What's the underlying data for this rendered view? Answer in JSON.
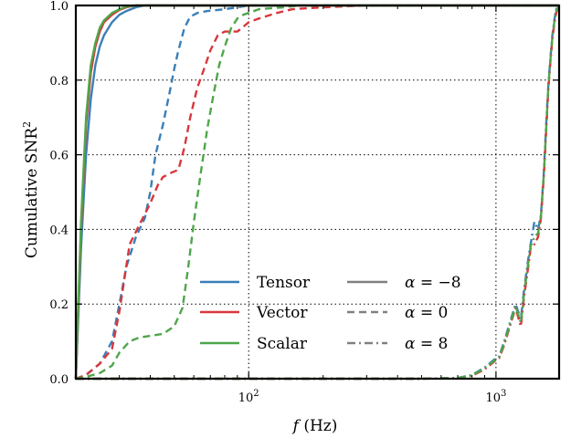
{
  "chart_data": {
    "type": "line",
    "title": "",
    "xlabel_var": "f",
    "xlabel_unit": "(Hz)",
    "ylabel_main": "Cumulative SNR",
    "ylabel_sup": "2",
    "x_scale": "log",
    "xlim": [
      20,
      1800
    ],
    "ylim": [
      0,
      1.0
    ],
    "x_ticks": [
      {
        "value": 100,
        "base": "10",
        "exp": "2"
      },
      {
        "value": 1000,
        "base": "10",
        "exp": "3"
      }
    ],
    "y_ticks": [
      {
        "value": 0.0,
        "label": "0.0"
      },
      {
        "value": 0.2,
        "label": "0.2"
      },
      {
        "value": 0.4,
        "label": "0.4"
      },
      {
        "value": 0.6,
        "label": "0.6"
      },
      {
        "value": 0.8,
        "label": "0.8"
      },
      {
        "value": 1.0,
        "label": "1.0"
      }
    ],
    "grid": true,
    "legend_placement": "lower-center",
    "colors": {
      "Tensor": "#3a7fb8",
      "Vector": "#d8373c",
      "Scalar": "#4fa64a",
      "gray": "#808080"
    },
    "legend": {
      "polarizations": [
        "Tensor",
        "Vector",
        "Scalar"
      ],
      "alphas": [
        {
          "style": "solid",
          "prefix": "α = ",
          "value": "−8"
        },
        {
          "style": "dashed",
          "prefix": "α = ",
          "value": "0"
        },
        {
          "style": "dashdot",
          "prefix": "α = ",
          "value": "8"
        }
      ]
    },
    "series": [
      {
        "polarization": "Tensor",
        "alpha": -8,
        "style": "solid",
        "x": [
          20,
          21,
          22,
          23,
          24,
          25,
          26,
          28,
          30,
          32,
          35,
          38,
          45,
          60,
          80,
          200,
          1800
        ],
        "y": [
          0,
          0.35,
          0.6,
          0.75,
          0.84,
          0.89,
          0.92,
          0.955,
          0.975,
          0.985,
          0.995,
          1.0,
          1.0,
          1.0,
          1.0,
          1.0,
          1.0
        ]
      },
      {
        "polarization": "Vector",
        "alpha": -8,
        "style": "solid",
        "x": [
          20,
          21,
          22,
          23,
          24,
          25,
          26,
          28,
          30,
          32,
          35,
          38,
          45,
          60,
          80,
          200,
          1800
        ],
        "y": [
          0,
          0.4,
          0.68,
          0.82,
          0.89,
          0.93,
          0.955,
          0.975,
          0.988,
          0.995,
          1.0,
          1.0,
          1.0,
          1.0,
          1.0,
          1.0,
          1.0
        ]
      },
      {
        "polarization": "Scalar",
        "alpha": -8,
        "style": "solid",
        "x": [
          20,
          21,
          22,
          23,
          24,
          25,
          26,
          28,
          30,
          32,
          35,
          38,
          45,
          60,
          80,
          200,
          1800
        ],
        "y": [
          0,
          0.42,
          0.7,
          0.84,
          0.9,
          0.94,
          0.96,
          0.98,
          0.99,
          0.997,
          1.0,
          1.0,
          1.0,
          1.0,
          1.0,
          1.0,
          1.0
        ]
      },
      {
        "polarization": "Tensor",
        "alpha": 0,
        "style": "dashed",
        "x": [
          20,
          22,
          25,
          28,
          30,
          32,
          35,
          38,
          40,
          42,
          45,
          48,
          50,
          52,
          55,
          58,
          62,
          68,
          80,
          90,
          100,
          150,
          300,
          1800
        ],
        "y": [
          0,
          0.01,
          0.04,
          0.1,
          0.2,
          0.3,
          0.38,
          0.43,
          0.5,
          0.6,
          0.68,
          0.77,
          0.83,
          0.88,
          0.94,
          0.97,
          0.98,
          0.985,
          0.99,
          0.995,
          1.0,
          1.0,
          1.0,
          1.0
        ]
      },
      {
        "polarization": "Vector",
        "alpha": 0,
        "style": "dashed",
        "x": [
          20,
          22,
          25,
          28,
          30,
          33,
          36,
          40,
          43,
          45,
          48,
          52,
          55,
          58,
          62,
          66,
          70,
          75,
          80,
          90,
          100,
          110,
          130,
          150,
          200,
          300,
          1800
        ],
        "y": [
          0,
          0.01,
          0.04,
          0.08,
          0.18,
          0.36,
          0.41,
          0.47,
          0.52,
          0.54,
          0.55,
          0.56,
          0.62,
          0.7,
          0.78,
          0.83,
          0.88,
          0.92,
          0.93,
          0.93,
          0.955,
          0.965,
          0.98,
          0.99,
          0.995,
          1.0,
          1.0
        ]
      },
      {
        "polarization": "Scalar",
        "alpha": 0,
        "style": "dashed",
        "x": [
          20,
          22,
          25,
          28,
          30,
          33,
          36,
          40,
          45,
          50,
          54,
          57,
          60,
          64,
          68,
          72,
          76,
          80,
          85,
          90,
          95,
          100,
          110,
          125,
          140,
          160,
          200,
          300,
          1800
        ],
        "y": [
          0,
          0.005,
          0.015,
          0.035,
          0.07,
          0.1,
          0.11,
          0.115,
          0.12,
          0.14,
          0.19,
          0.3,
          0.42,
          0.55,
          0.67,
          0.76,
          0.84,
          0.89,
          0.94,
          0.965,
          0.975,
          0.98,
          0.99,
          0.993,
          0.995,
          1.0,
          1.0,
          1.0,
          1.0
        ]
      },
      {
        "polarization": "Tensor",
        "alpha": 8,
        "style": "dashdot",
        "x": [
          20,
          100,
          500,
          700,
          800,
          900,
          1000,
          1030,
          1080,
          1150,
          1200,
          1260,
          1300,
          1350,
          1380,
          1430,
          1480,
          1520,
          1560,
          1600,
          1630,
          1660,
          1690,
          1720,
          1750,
          1800
        ],
        "y": [
          0,
          0,
          0,
          0.002,
          0.01,
          0.03,
          0.055,
          0.06,
          0.1,
          0.16,
          0.2,
          0.16,
          0.24,
          0.32,
          0.36,
          0.42,
          0.4,
          0.44,
          0.55,
          0.7,
          0.79,
          0.86,
          0.92,
          0.96,
          0.99,
          1.0
        ]
      },
      {
        "polarization": "Vector",
        "alpha": 8,
        "style": "dashdot",
        "x": [
          20,
          100,
          500,
          700,
          800,
          900,
          1000,
          1030,
          1080,
          1150,
          1200,
          1260,
          1300,
          1350,
          1380,
          1430,
          1480,
          1520,
          1560,
          1600,
          1630,
          1660,
          1690,
          1720,
          1750,
          1800
        ],
        "y": [
          0,
          0,
          0,
          0.002,
          0.008,
          0.025,
          0.05,
          0.055,
          0.09,
          0.15,
          0.19,
          0.14,
          0.22,
          0.3,
          0.35,
          0.36,
          0.38,
          0.43,
          0.54,
          0.68,
          0.78,
          0.85,
          0.91,
          0.95,
          0.98,
          1.0
        ]
      },
      {
        "polarization": "Scalar",
        "alpha": 8,
        "style": "dashdot",
        "x": [
          20,
          100,
          500,
          700,
          800,
          900,
          1000,
          1030,
          1080,
          1150,
          1200,
          1260,
          1300,
          1350,
          1380,
          1430,
          1480,
          1520,
          1560,
          1600,
          1630,
          1660,
          1690,
          1720,
          1750,
          1800
        ],
        "y": [
          0,
          0,
          0,
          0.002,
          0.009,
          0.028,
          0.052,
          0.058,
          0.095,
          0.155,
          0.195,
          0.15,
          0.23,
          0.31,
          0.355,
          0.38,
          0.39,
          0.435,
          0.545,
          0.69,
          0.785,
          0.855,
          0.915,
          0.955,
          0.985,
          1.0
        ]
      }
    ]
  }
}
